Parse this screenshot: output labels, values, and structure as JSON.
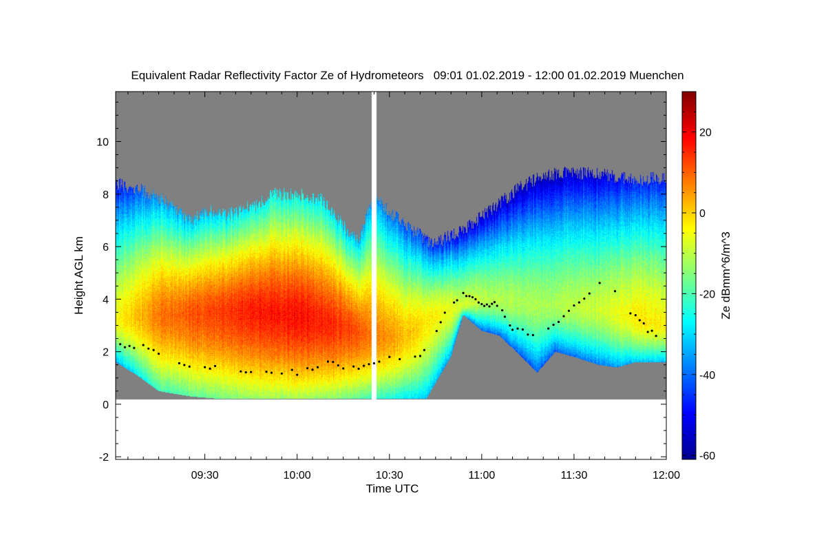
{
  "chart_data": {
    "type": "heatmap",
    "title": "Equivalent Radar Reflectivity Factor Ze of Hydrometeors   09:01 01.02.2019 - 12:00 01.02.2019 Muenchen",
    "xlabel": "Time UTC",
    "ylabel": "Height AGL km",
    "colorbar_label": "Ze dBmm^6/m^3",
    "x_ticks": [
      "09:30",
      "10:00",
      "10:30",
      "11:00",
      "11:30",
      "12:00"
    ],
    "x_tick_minutes": [
      30,
      60,
      90,
      120,
      150,
      180
    ],
    "xlim_minutes": [
      1,
      180
    ],
    "y_ticks": [
      -2,
      0,
      2,
      4,
      6,
      8,
      10
    ],
    "ylim": [
      -2.1,
      11.9
    ],
    "colorbar_ticks": [
      20,
      0,
      -20,
      -40,
      -60
    ],
    "colorbar_range": [
      -61,
      30
    ],
    "colormap": "jet",
    "no_data_color": "#808080",
    "ground_gap_km": 0.18,
    "cloud_top_km": [
      [
        1,
        8.4
      ],
      [
        8,
        8.2
      ],
      [
        15,
        7.9
      ],
      [
        25,
        7.0
      ],
      [
        33,
        7.4
      ],
      [
        37,
        7.2
      ],
      [
        47,
        7.6
      ],
      [
        52,
        8.0
      ],
      [
        60,
        8.0
      ],
      [
        68,
        7.8
      ],
      [
        75,
        6.8
      ],
      [
        80,
        6.2
      ],
      [
        85,
        8.0
      ],
      [
        90,
        7.3
      ],
      [
        98,
        6.6
      ],
      [
        104,
        6.1
      ],
      [
        110,
        6.4
      ],
      [
        116,
        6.8
      ],
      [
        124,
        7.5
      ],
      [
        132,
        8.2
      ],
      [
        140,
        8.7
      ],
      [
        148,
        8.8
      ],
      [
        156,
        8.8
      ],
      [
        163,
        8.7
      ],
      [
        170,
        8.5
      ],
      [
        176,
        8.6
      ],
      [
        180,
        8.6
      ]
    ],
    "cloud_base_km": [
      [
        1,
        1.6
      ],
      [
        8,
        1.1
      ],
      [
        15,
        0.5
      ],
      [
        25,
        0.3
      ],
      [
        35,
        0.2
      ],
      [
        50,
        0.2
      ],
      [
        65,
        0.2
      ],
      [
        75,
        0.2
      ],
      [
        85,
        0.2
      ],
      [
        95,
        0.2
      ],
      [
        102,
        0.2
      ],
      [
        105,
        0.8
      ],
      [
        110,
        1.8
      ],
      [
        114,
        3.4
      ],
      [
        120,
        2.8
      ],
      [
        126,
        2.6
      ],
      [
        132,
        1.9
      ],
      [
        138,
        1.2
      ],
      [
        144,
        2.0
      ],
      [
        150,
        1.8
      ],
      [
        158,
        1.5
      ],
      [
        164,
        1.4
      ],
      [
        170,
        1.6
      ],
      [
        176,
        1.6
      ],
      [
        180,
        1.6
      ]
    ],
    "max_ze_layer": [
      [
        1,
        3.2,
        -5
      ],
      [
        15,
        3.4,
        8
      ],
      [
        30,
        3.5,
        12
      ],
      [
        45,
        3.6,
        16
      ],
      [
        60,
        3.4,
        18
      ],
      [
        75,
        3.0,
        14
      ],
      [
        85,
        2.6,
        8
      ],
      [
        95,
        2.6,
        2
      ],
      [
        105,
        3.4,
        -4
      ],
      [
        120,
        4.0,
        -10
      ],
      [
        140,
        3.8,
        -12
      ],
      [
        160,
        3.6,
        -8
      ],
      [
        172,
        3.2,
        -2
      ],
      [
        180,
        3.0,
        -4
      ]
    ],
    "melting_layer_points_km": [
      [
        1,
        2.3
      ],
      [
        10,
        2.2
      ],
      [
        20,
        1.5
      ],
      [
        30,
        1.4
      ],
      [
        40,
        1.3
      ],
      [
        50,
        1.3
      ],
      [
        60,
        1.2
      ],
      [
        70,
        1.6
      ],
      [
        80,
        1.3
      ],
      [
        90,
        1.8
      ],
      [
        100,
        1.8
      ],
      [
        108,
        3.4
      ],
      [
        114,
        4.3
      ],
      [
        120,
        3.8
      ],
      [
        125,
        3.8
      ],
      [
        130,
        2.9
      ],
      [
        140,
        2.6
      ],
      [
        150,
        3.7
      ],
      [
        160,
        4.8
      ],
      [
        170,
        3.3
      ],
      [
        178,
        2.4
      ]
    ],
    "data_gap_minutes": [
      [
        84.3,
        85.8
      ]
    ]
  }
}
